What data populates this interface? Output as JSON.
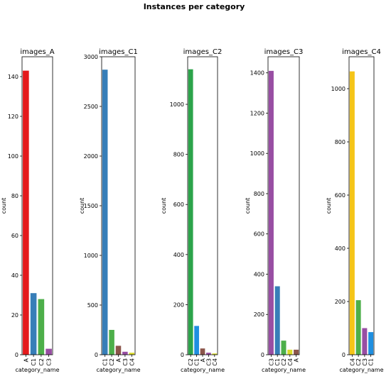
{
  "suptitle": "Instances per category",
  "chart_data": [
    {
      "type": "bar",
      "title": "images_A",
      "xlabel": "category_name",
      "ylabel": "count",
      "categories": [
        "A",
        "C1",
        "C2",
        "C3"
      ],
      "values": [
        143,
        31,
        28,
        3
      ],
      "colors": [
        "#e41a1c",
        "#377eb8",
        "#4daf4a",
        "#984ea3"
      ],
      "ylim": [
        0,
        150
      ],
      "yticks": [
        0,
        20,
        40,
        60,
        80,
        100,
        120,
        140
      ]
    },
    {
      "type": "bar",
      "title": "images_C1",
      "xlabel": "category_name",
      "ylabel": "count",
      "categories": [
        "C1",
        "C2",
        "A",
        "C3",
        "C4"
      ],
      "values": [
        2870,
        250,
        90,
        30,
        20
      ],
      "colors": [
        "#377eb8",
        "#4daf4a",
        "#8c564b",
        "#984ea3",
        "#dbdb2a"
      ],
      "ylim": [
        0,
        3000
      ],
      "yticks": [
        0,
        500,
        1000,
        1500,
        2000,
        2500,
        3000
      ]
    },
    {
      "type": "bar",
      "title": "images_C2",
      "xlabel": "category_name",
      "ylabel": "count",
      "categories": [
        "C2",
        "C1",
        "A",
        "C3",
        "C4"
      ],
      "values": [
        1140,
        115,
        25,
        8,
        5
      ],
      "colors": [
        "#2ca44a",
        "#1f8fe0",
        "#8c564b",
        "#984ea3",
        "#dbdb2a"
      ],
      "ylim": [
        0,
        1190
      ],
      "yticks": [
        0,
        200,
        400,
        600,
        800,
        1000
      ]
    },
    {
      "type": "bar",
      "title": "images_C3",
      "xlabel": "category_name",
      "ylabel": "count",
      "categories": [
        "C3",
        "C1",
        "C2",
        "C4",
        "A"
      ],
      "values": [
        1410,
        340,
        70,
        25,
        25
      ],
      "colors": [
        "#984ea3",
        "#377eb8",
        "#4daf4a",
        "#dbdb2a",
        "#8c564b"
      ],
      "ylim": [
        0,
        1480
      ],
      "yticks": [
        0,
        200,
        400,
        600,
        800,
        1000,
        1200,
        1400
      ]
    },
    {
      "type": "bar",
      "title": "images_C4",
      "xlabel": "category_name",
      "ylabel": "count",
      "categories": [
        "C4",
        "C2",
        "C3",
        "C1"
      ],
      "values": [
        1065,
        205,
        100,
        85
      ],
      "colors": [
        "#f5c518",
        "#4daf4a",
        "#984ea3",
        "#1f8fe0"
      ],
      "ylim": [
        0,
        1120
      ],
      "yticks": [
        0,
        200,
        400,
        600,
        800,
        1000
      ]
    }
  ]
}
